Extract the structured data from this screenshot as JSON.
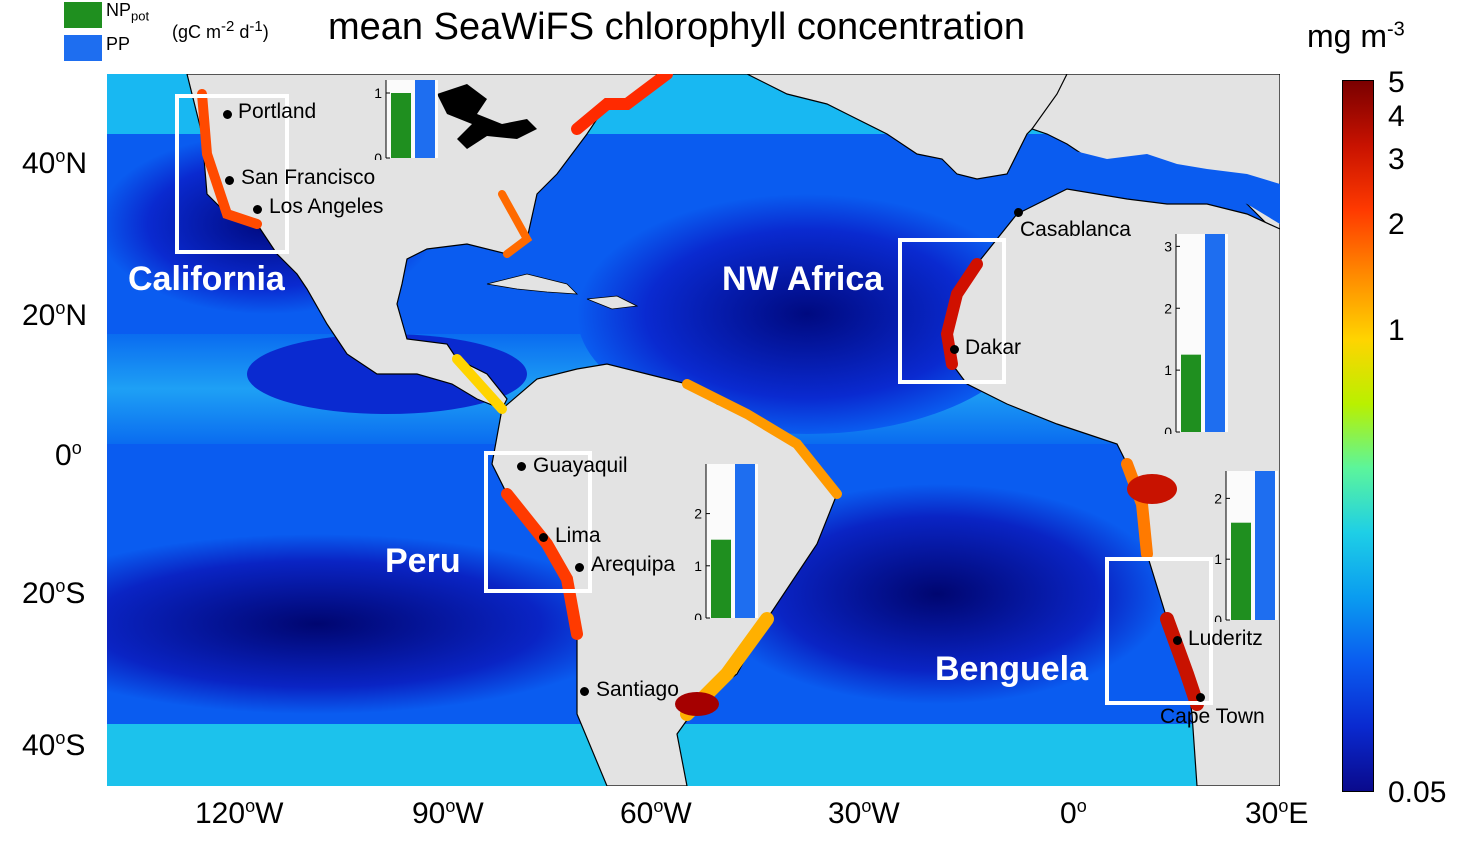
{
  "title": "mean SeaWiFS chlorophyll concentration",
  "legend": {
    "np": {
      "main": "NP",
      "sub": "pot",
      "color": "#1f8f1f"
    },
    "pp": {
      "main": "PP",
      "color": "#1e6ef0"
    },
    "units": {
      "a": "(gC m",
      "sup1": "-2",
      "b": " d",
      "sup2": "-1",
      "c": ")"
    }
  },
  "colorbar": {
    "unit_main": "mg m",
    "unit_sup": "-3",
    "ticks": [
      "5",
      "4",
      "3",
      "2",
      "1",
      "0.05"
    ],
    "tick_values": [
      5,
      4,
      3,
      2,
      1,
      0.05
    ],
    "scale": "log",
    "colors": [
      "#7a0000",
      "#c81200",
      "#ff3a00",
      "#ff8a00",
      "#ffd400",
      "#b9f000",
      "#5cf59b",
      "#1ecfe6",
      "#0a9cf0",
      "#0a5cf0",
      "#0a2ad0",
      "#0a0a8c"
    ]
  },
  "axes": {
    "lat_ticks": [
      {
        "num": "40",
        "deg": "o",
        "hem": "N"
      },
      {
        "num": "20",
        "deg": "o",
        "hem": "N"
      },
      {
        "num": "0",
        "deg": "o",
        "hem": ""
      },
      {
        "num": "20",
        "deg": "o",
        "hem": "S"
      },
      {
        "num": "40",
        "deg": "o",
        "hem": "S"
      }
    ],
    "lon_ticks": [
      {
        "num": "120",
        "deg": "o",
        "hem": "W"
      },
      {
        "num": "90",
        "deg": "o",
        "hem": "W"
      },
      {
        "num": "60",
        "deg": "o",
        "hem": "W"
      },
      {
        "num": "30",
        "deg": "o",
        "hem": "W"
      },
      {
        "num": "0",
        "deg": "o",
        "hem": ""
      },
      {
        "num": "30",
        "deg": "o",
        "hem": "E"
      }
    ]
  },
  "regions": [
    {
      "name": "California"
    },
    {
      "name": "NW Africa"
    },
    {
      "name": "Peru"
    },
    {
      "name": "Benguela"
    }
  ],
  "cities": [
    "Portland",
    "San Francisco",
    "Los Angeles",
    "Casablanca",
    "Dakar",
    "Guayaquil",
    "Lima",
    "Arequipa",
    "Santiago",
    "Luderitz",
    "Cape Town"
  ],
  "chart_data": [
    {
      "type": "bar",
      "region": "California",
      "categories": [
        "NPpot",
        "PP"
      ],
      "values": [
        1.0,
        1.2
      ],
      "ylim": [
        0,
        1.2
      ],
      "yticks": [
        "0",
        "1"
      ]
    },
    {
      "type": "bar",
      "region": "NW Africa",
      "categories": [
        "NPpot",
        "PP"
      ],
      "values": [
        1.25,
        3.2
      ],
      "ylim": [
        0,
        3.2
      ],
      "yticks": [
        "0",
        "1",
        "2",
        "3"
      ]
    },
    {
      "type": "bar",
      "region": "Peru",
      "categories": [
        "NPpot",
        "PP"
      ],
      "values": [
        1.5,
        2.95
      ],
      "ylim": [
        0,
        2.95
      ],
      "yticks": [
        "0",
        "1",
        "2"
      ]
    },
    {
      "type": "bar",
      "region": "Benguela",
      "categories": [
        "NPpot",
        "PP"
      ],
      "values": [
        1.6,
        2.45
      ],
      "ylim": [
        0,
        2.45
      ],
      "yticks": [
        "0",
        "1",
        "2"
      ]
    }
  ]
}
